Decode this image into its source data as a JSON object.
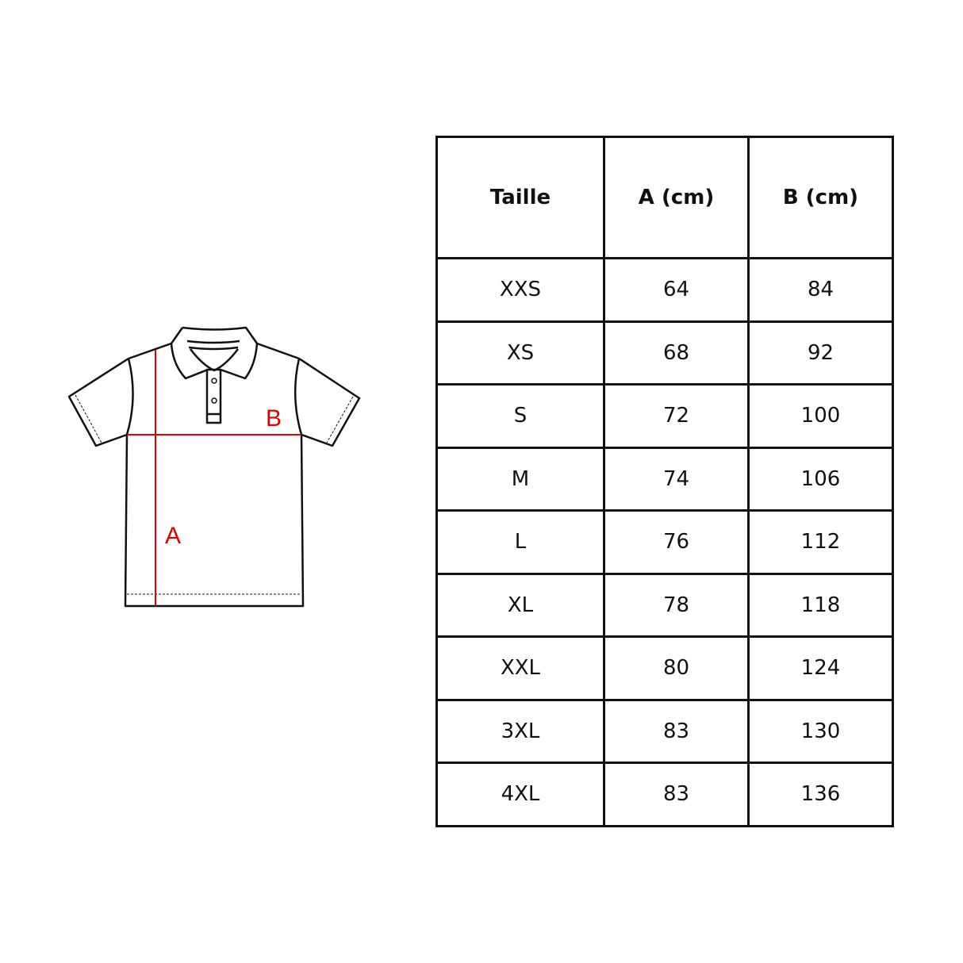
{
  "diagram": {
    "label_a": "A",
    "label_b": "B",
    "accent_color": "#e00000",
    "outline_color": "#111111"
  },
  "table": {
    "headers": [
      "Taille",
      "A (cm)",
      "B (cm)"
    ],
    "rows": [
      [
        "XXS",
        "64",
        "84"
      ],
      [
        "XS",
        "68",
        "92"
      ],
      [
        "S",
        "72",
        "100"
      ],
      [
        "M",
        "74",
        "106"
      ],
      [
        "L",
        "76",
        "112"
      ],
      [
        "XL",
        "78",
        "118"
      ],
      [
        "XXL",
        "80",
        "124"
      ],
      [
        "3XL",
        "83",
        "130"
      ],
      [
        "4XL",
        "83",
        "136"
      ]
    ]
  }
}
